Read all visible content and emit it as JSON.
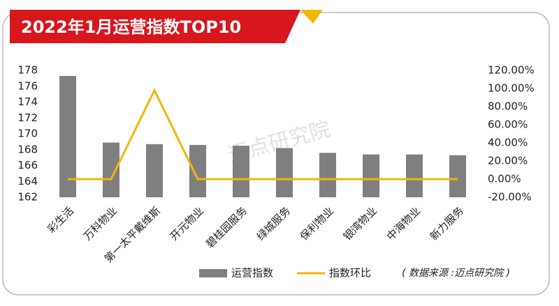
{
  "chart_data": {
    "type": "bar_line",
    "title": "2022年1月运营指数TOP10",
    "categories": [
      "彩生活",
      "万科物业",
      "第一太平戴维斯",
      "开元物业",
      "碧桂园服务",
      "绿城服务",
      "保利物业",
      "银湾物业",
      "中海物业",
      "新力服务"
    ],
    "series": [
      {
        "name": "运营指数",
        "type": "bar",
        "color": "#7f7f7f",
        "values": [
          177.3,
          168.9,
          168.7,
          168.6,
          168.5,
          168.2,
          167.6,
          167.4,
          167.4,
          167.3
        ]
      },
      {
        "name": "指数环比",
        "type": "line",
        "axis": "y2",
        "color": "#f2b705",
        "values": [
          0,
          0,
          98,
          0,
          0,
          0,
          0,
          0,
          0,
          0
        ]
      }
    ],
    "ylim": [
      162,
      178
    ],
    "yticks": [
      162,
      164,
      166,
      168,
      170,
      172,
      174,
      176,
      178
    ],
    "y2lim": [
      -20,
      120
    ],
    "y2ticks": [
      {
        "value": -20,
        "label": "-20.00%"
      },
      {
        "value": 0,
        "label": "0.00%"
      },
      {
        "value": 20,
        "label": "20.00%"
      },
      {
        "value": 40,
        "label": "40.00%"
      },
      {
        "value": 60,
        "label": "60.00%"
      },
      {
        "value": 80,
        "label": "80.00%"
      },
      {
        "value": 100,
        "label": "100.00%"
      },
      {
        "value": 120,
        "label": "120.00%"
      }
    ],
    "grid": false,
    "source": "( 数据来源 :迈点研究院 )",
    "watermark": "迈点研究院"
  }
}
